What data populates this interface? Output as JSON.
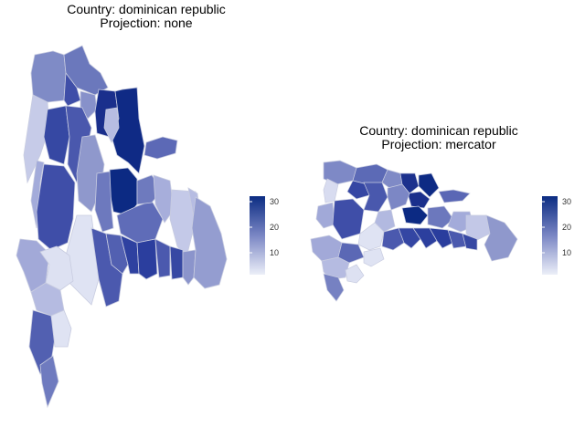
{
  "figures": [
    {
      "title_line1": "Country: dominican republic",
      "title_line2": "Projection: none",
      "legend": {
        "ticks": [
          "30",
          "20",
          "10"
        ],
        "tick_values": [
          30,
          20,
          10
        ],
        "min": 0,
        "max": 34
      }
    },
    {
      "title_line1": "Country: dominican republic",
      "title_line2": "Projection: mercator",
      "legend": {
        "ticks": [
          "30",
          "20",
          "10"
        ],
        "tick_values": [
          30,
          20,
          10
        ],
        "min": 0,
        "max": 34
      }
    }
  ],
  "colors": {
    "low": "#e6e9f5",
    "high": "#0b2c82",
    "border": "#c9cde0"
  }
}
